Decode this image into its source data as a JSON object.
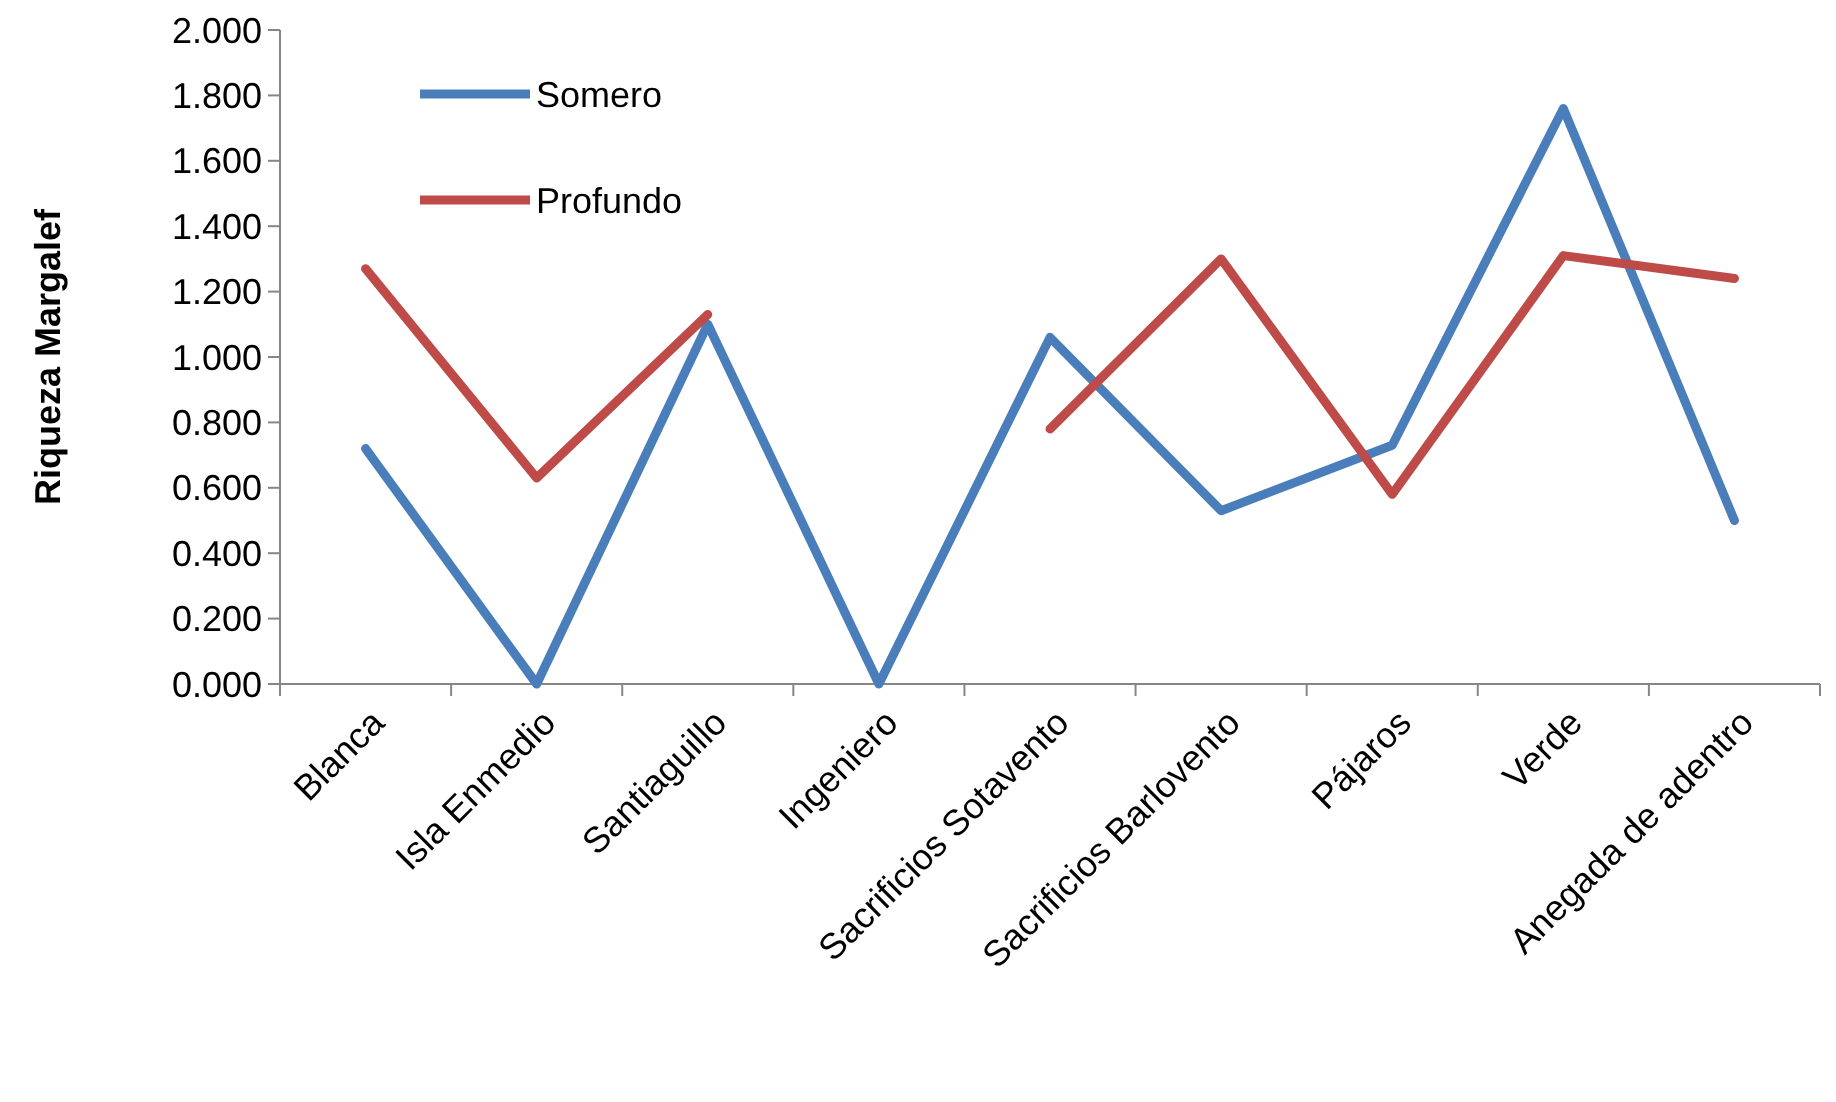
{
  "chart_data": {
    "type": "line",
    "ylabel": "Riqueza Margalef",
    "categories": [
      "Blanca",
      "Isla Enmedio",
      "Santiaguillo",
      "Ingeniero",
      "Sacrificios Sotavento",
      "Sacrificios Barlovento",
      "Pájaros",
      "Verde",
      "Anegada de adentro"
    ],
    "series": [
      {
        "name": "Somero",
        "color": "#4a7ebb",
        "values": [
          0.72,
          0,
          1.1,
          0,
          1.06,
          0.53,
          0.73,
          1.76,
          0.5
        ]
      },
      {
        "name": "Profundo",
        "color": "#be4b48",
        "values": [
          1.27,
          0.63,
          1.13,
          null,
          0.78,
          1.3,
          0.58,
          1.31,
          1.24
        ]
      }
    ],
    "ylim": [
      0,
      2
    ],
    "yticks": [
      {
        "value": 0,
        "label": "0.000"
      },
      {
        "value": 0.2,
        "label": "0.200"
      },
      {
        "value": 0.4,
        "label": "0.400"
      },
      {
        "value": 0.6,
        "label": "0.600"
      },
      {
        "value": 0.8,
        "label": "0.800"
      },
      {
        "value": 1,
        "label": "1.000"
      },
      {
        "value": 1.2,
        "label": "1.200"
      },
      {
        "value": 1.4,
        "label": "1.400"
      },
      {
        "value": 1.6,
        "label": "1.600"
      },
      {
        "value": 1.8,
        "label": "1.800"
      },
      {
        "value": 2,
        "label": "2.000"
      }
    ],
    "legend": "top left",
    "grid": false,
    "marker": "none",
    "line_style": "solid"
  }
}
